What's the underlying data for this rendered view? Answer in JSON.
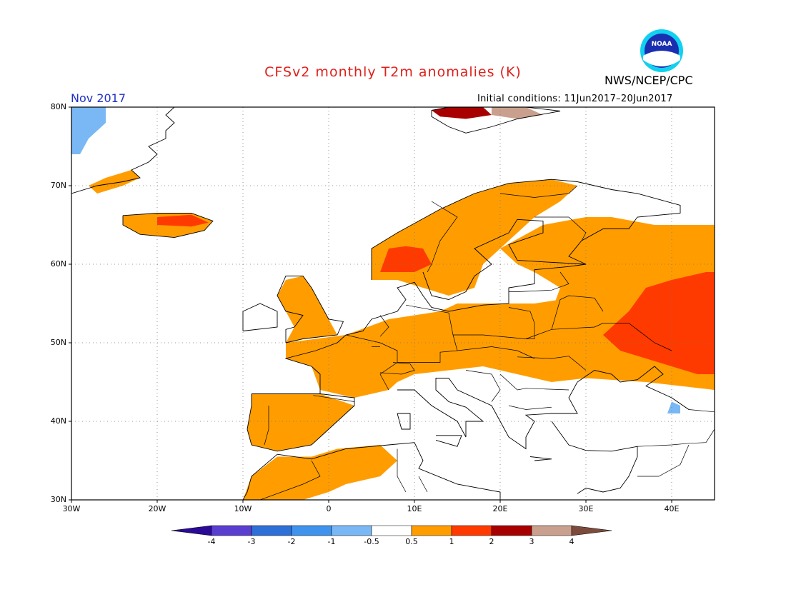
{
  "title": "CFSv2 monthly T2m anomalies (K)",
  "agency": "NWS/NCEP/CPC",
  "logo_text": "NOAA",
  "month_label": "Nov 2017",
  "initial_conditions": "Initial conditions: 11Jun2017–20Jun2017",
  "map": {
    "lon_range": [
      -30,
      45
    ],
    "lat_range": [
      30,
      80
    ],
    "lat_ticks": [
      "30N",
      "40N",
      "50N",
      "60N",
      "70N",
      "80N"
    ],
    "lon_ticks": [
      "30W",
      "20W",
      "10W",
      "0",
      "10E",
      "20E",
      "30E",
      "40E"
    ],
    "regions": [
      {
        "name": "western-europe-warm",
        "category": "0.5-1",
        "polygon": [
          [
            -5,
            50
          ],
          [
            2,
            51
          ],
          [
            7,
            53
          ],
          [
            13,
            54
          ],
          [
            15,
            55
          ],
          [
            18,
            55
          ],
          [
            24,
            55
          ],
          [
            30,
            56
          ],
          [
            33,
            55
          ],
          [
            36,
            52
          ],
          [
            38,
            50
          ],
          [
            40,
            47
          ],
          [
            45,
            45
          ],
          [
            45,
            44
          ],
          [
            37,
            45
          ],
          [
            30,
            45.5
          ],
          [
            26,
            45
          ],
          [
            22,
            46
          ],
          [
            18,
            47
          ],
          [
            14,
            46.5
          ],
          [
            10,
            46
          ],
          [
            8,
            45
          ],
          [
            7,
            44
          ],
          [
            3,
            43
          ],
          [
            -1,
            44
          ],
          [
            -2,
            47
          ],
          [
            -5,
            48
          ]
        ]
      },
      {
        "name": "iberia-warm",
        "category": "0.5-1",
        "polygon": [
          [
            -9,
            43.5
          ],
          [
            -1,
            43.5
          ],
          [
            3,
            42
          ],
          [
            1,
            40
          ],
          [
            -1,
            38
          ],
          [
            -2,
            37
          ],
          [
            -6,
            36.2
          ],
          [
            -9,
            37
          ],
          [
            -9.5,
            39
          ],
          [
            -9,
            42
          ]
        ]
      },
      {
        "name": "northwest-africa-warm",
        "category": "0.5-1",
        "polygon": [
          [
            -10,
            30
          ],
          [
            -9,
            33
          ],
          [
            -6,
            35.5
          ],
          [
            -2,
            35.5
          ],
          [
            1,
            36.5
          ],
          [
            6,
            37
          ],
          [
            8,
            35
          ],
          [
            6,
            33
          ],
          [
            2,
            32
          ],
          [
            0,
            31
          ],
          [
            -3,
            30
          ]
        ]
      },
      {
        "name": "scandinavia-warm",
        "category": "0.5-1",
        "polygon": [
          [
            5,
            58
          ],
          [
            5,
            62
          ],
          [
            8,
            64
          ],
          [
            13,
            67
          ],
          [
            17,
            69
          ],
          [
            21,
            70.3
          ],
          [
            26,
            70.8
          ],
          [
            29,
            70
          ],
          [
            27,
            68
          ],
          [
            24,
            66
          ],
          [
            22,
            64
          ],
          [
            20,
            62
          ],
          [
            18,
            60
          ],
          [
            17,
            57
          ],
          [
            14,
            56
          ],
          [
            11,
            57
          ],
          [
            8,
            58
          ]
        ]
      },
      {
        "name": "russia-warm",
        "category": "0.5-1",
        "polygon": [
          [
            20,
            62
          ],
          [
            25,
            65
          ],
          [
            30,
            66
          ],
          [
            33,
            66
          ],
          [
            38,
            65
          ],
          [
            45,
            65
          ],
          [
            45,
            44
          ],
          [
            40,
            45
          ],
          [
            37,
            46
          ],
          [
            34,
            47
          ],
          [
            30,
            48
          ],
          [
            27,
            50
          ],
          [
            26,
            54
          ],
          [
            27,
            57
          ],
          [
            24,
            59
          ],
          [
            22,
            60
          ]
        ]
      },
      {
        "name": "britain-warm",
        "category": "0.5-1",
        "polygon": [
          [
            -5,
            50
          ],
          [
            -3,
            50.5
          ],
          [
            1,
            51
          ],
          [
            0,
            53
          ],
          [
            -1,
            55
          ],
          [
            -2,
            57
          ],
          [
            -3,
            58.5
          ],
          [
            -5,
            58
          ],
          [
            -6,
            56
          ],
          [
            -5,
            54
          ],
          [
            -4,
            52
          ]
        ]
      },
      {
        "name": "iceland-warm",
        "category": "0.5-1",
        "polygon": [
          [
            -24,
            66.2
          ],
          [
            -20,
            66.5
          ],
          [
            -16,
            66.5
          ],
          [
            -13.5,
            65.5
          ],
          [
            -14.5,
            64.3
          ],
          [
            -18,
            63.4
          ],
          [
            -22,
            63.8
          ],
          [
            -24,
            65
          ]
        ]
      },
      {
        "name": "greenland-coast-warm",
        "category": "0.5-1",
        "polygon": [
          [
            -27,
            69
          ],
          [
            -24,
            70
          ],
          [
            -22,
            71
          ],
          [
            -23,
            72
          ],
          [
            -26,
            71
          ],
          [
            -28,
            70
          ]
        ]
      },
      {
        "name": "russia-hot",
        "category": "1-2",
        "polygon": [
          [
            32,
            51
          ],
          [
            35,
            54
          ],
          [
            37,
            57
          ],
          [
            40,
            58
          ],
          [
            44,
            59
          ],
          [
            45,
            59
          ],
          [
            45,
            46
          ],
          [
            43,
            46
          ],
          [
            40,
            47
          ],
          [
            37,
            48
          ],
          [
            34,
            49
          ]
        ]
      },
      {
        "name": "norway-hot",
        "category": "1-2",
        "polygon": [
          [
            6,
            59
          ],
          [
            7,
            62
          ],
          [
            9,
            62.3
          ],
          [
            11,
            62
          ],
          [
            12,
            60
          ],
          [
            10,
            59
          ]
        ]
      },
      {
        "name": "iceland-hot",
        "category": "1-2",
        "polygon": [
          [
            -20,
            66
          ],
          [
            -16,
            66.3
          ],
          [
            -14,
            65.3
          ],
          [
            -16,
            64.8
          ],
          [
            -20,
            65
          ]
        ]
      },
      {
        "name": "svalbard-very-hot",
        "category": "2-3",
        "polygon": [
          [
            12,
            79.6
          ],
          [
            14,
            80
          ],
          [
            18,
            80
          ],
          [
            19,
            79
          ],
          [
            16,
            78.5
          ],
          [
            13,
            78.8
          ]
        ]
      },
      {
        "name": "svalbard-extreme",
        "category": "3-4",
        "polygon": [
          [
            19,
            80
          ],
          [
            23,
            80
          ],
          [
            25,
            79
          ],
          [
            22,
            78.5
          ],
          [
            19,
            79
          ]
        ]
      },
      {
        "name": "greenland-cold",
        "category": "-1--0.5",
        "polygon": [
          [
            -30,
            80
          ],
          [
            -26,
            80
          ],
          [
            -26,
            78
          ],
          [
            -28,
            76
          ],
          [
            -29,
            74
          ],
          [
            -30,
            74
          ]
        ]
      },
      {
        "name": "caucasus-cold",
        "category": "-1--0.5",
        "polygon": [
          [
            39.5,
            41
          ],
          [
            41,
            41
          ],
          [
            41,
            42
          ],
          [
            40,
            42.5
          ]
        ]
      }
    ]
  },
  "colorbar": {
    "bounds": [
      "-4",
      "-3",
      "-2",
      "-1",
      "-0.5",
      "0.5",
      "1",
      "2",
      "3",
      "4"
    ],
    "colors": [
      "#2a0a96",
      "#5a3ed0",
      "#2f6fd8",
      "#3f93ec",
      "#79b8f5",
      "#ffffff",
      "#ff9d00",
      "#ff3a00",
      "#a80000",
      "#c9a08e",
      "#7c4b3c"
    ]
  }
}
